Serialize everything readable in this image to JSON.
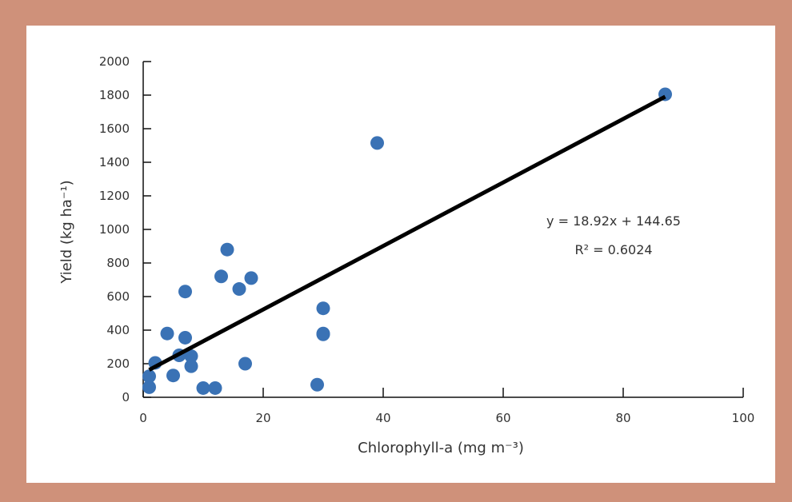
{
  "chart_data": {
    "type": "scatter",
    "xlabel": "Chlorophyll-a (mg m⁻³)",
    "ylabel": "Yield (kg ha⁻¹)",
    "xlim": [
      0,
      100
    ],
    "ylim": [
      0,
      2000
    ],
    "x_ticks": [
      0,
      20,
      40,
      60,
      80,
      100
    ],
    "y_ticks": [
      0,
      200,
      400,
      600,
      800,
      1000,
      1200,
      1400,
      1600,
      1800,
      2000
    ],
    "grid": false,
    "points": [
      {
        "x": 1,
        "y": 60
      },
      {
        "x": 1,
        "y": 125
      },
      {
        "x": 2,
        "y": 205
      },
      {
        "x": 4,
        "y": 380
      },
      {
        "x": 5,
        "y": 130
      },
      {
        "x": 6,
        "y": 250
      },
      {
        "x": 7,
        "y": 630
      },
      {
        "x": 7,
        "y": 355
      },
      {
        "x": 8,
        "y": 245
      },
      {
        "x": 8,
        "y": 185
      },
      {
        "x": 10,
        "y": 55
      },
      {
        "x": 12,
        "y": 55
      },
      {
        "x": 13,
        "y": 720
      },
      {
        "x": 14,
        "y": 880
      },
      {
        "x": 16,
        "y": 645
      },
      {
        "x": 17,
        "y": 200
      },
      {
        "x": 18,
        "y": 710
      },
      {
        "x": 29,
        "y": 75
      },
      {
        "x": 30,
        "y": 530
      },
      {
        "x": 30,
        "y": 380
      },
      {
        "x": 30,
        "y": 375
      },
      {
        "x": 39,
        "y": 1515
      },
      {
        "x": 87,
        "y": 1805
      }
    ],
    "trendline": {
      "slope": 18.92,
      "intercept": 144.65,
      "x_start": 1,
      "x_end": 87
    },
    "equation_text": "y = 18.92x + 144.65",
    "r2_text": "R² = 0.6024",
    "colors": {
      "marker": "#3a72b5",
      "trendline": "#000000",
      "axis": "#111111",
      "frame": "#cf917a"
    }
  }
}
